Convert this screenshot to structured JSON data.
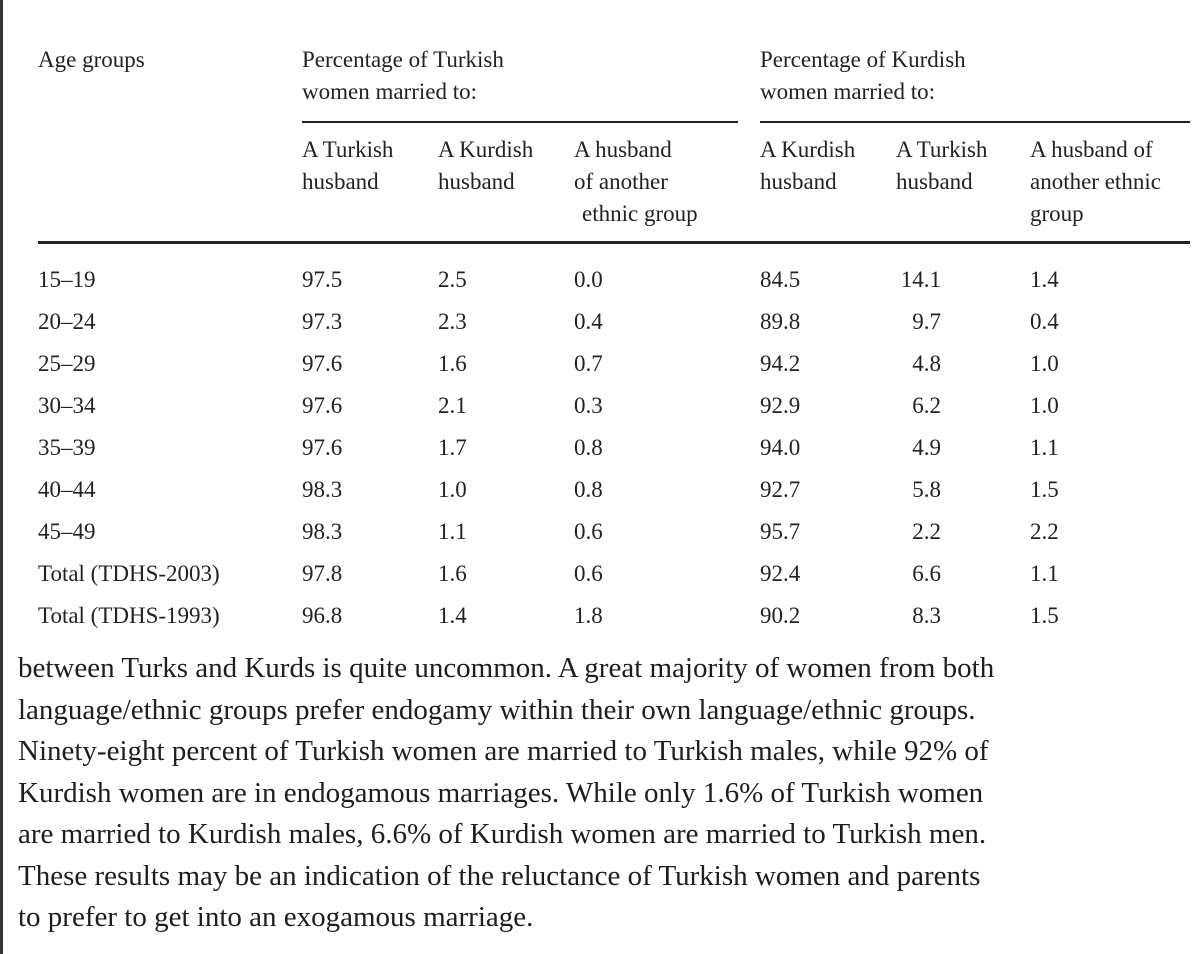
{
  "table": {
    "header": {
      "age": "Age groups",
      "groups": [
        {
          "title": [
            "Percentage of Turkish",
            "women married to:"
          ],
          "columns": [
            [
              "A Turkish",
              "husband"
            ],
            [
              "A Kurdish",
              "husband"
            ],
            [
              "A husband",
              "of another",
              "ethnic group"
            ]
          ]
        },
        {
          "title": [
            "Percentage of Kurdish",
            "women married to:"
          ],
          "columns": [
            [
              "A Kurdish",
              "husband"
            ],
            [
              "A Turkish",
              "husband"
            ],
            [
              "A husband of",
              "another ethnic",
              "group"
            ]
          ]
        }
      ]
    },
    "rows": [
      [
        "15–19",
        "97.5",
        "2.5",
        "0.0",
        "84.5",
        "14.1",
        "1.4"
      ],
      [
        "20–24",
        "97.3",
        "2.3",
        "0.4",
        "89.8",
        "9.7",
        "0.4"
      ],
      [
        "25–29",
        "97.6",
        "1.6",
        "0.7",
        "94.2",
        "4.8",
        "1.0"
      ],
      [
        "30–34",
        "97.6",
        "2.1",
        "0.3",
        "92.9",
        "6.2",
        "1.0"
      ],
      [
        "35–39",
        "97.6",
        "1.7",
        "0.8",
        "94.0",
        "4.9",
        "1.1"
      ],
      [
        "40–44",
        "98.3",
        "1.0",
        "0.8",
        "92.7",
        "5.8",
        "1.5"
      ],
      [
        "45–49",
        "98.3",
        "1.1",
        "0.6",
        "95.7",
        "2.2",
        "2.2"
      ],
      [
        "Total (TDHS-2003)",
        "97.8",
        "1.6",
        "0.6",
        "92.4",
        "6.6",
        "1.1"
      ],
      [
        "Total (TDHS-1993)",
        "96.8",
        "1.4",
        "1.8",
        "90.2",
        "8.3",
        "1.5"
      ]
    ]
  },
  "paragraph": [
    "between Turks and Kurds is quite uncommon. A great majority of women from both",
    "language/ethnic groups prefer endogamy within their own language/ethnic groups.",
    "Ninety-eight percent of Turkish women are married to Turkish males, while 92% of",
    "Kurdish women are in endogamous marriages. While only 1.6% of Turkish women",
    "are married to Kurdish males, 6.6% of Kurdish women are married to Turkish men.",
    "These results may be an indication of the reluctance of Turkish women and parents",
    "to prefer to get into an exogamous marriage."
  ]
}
